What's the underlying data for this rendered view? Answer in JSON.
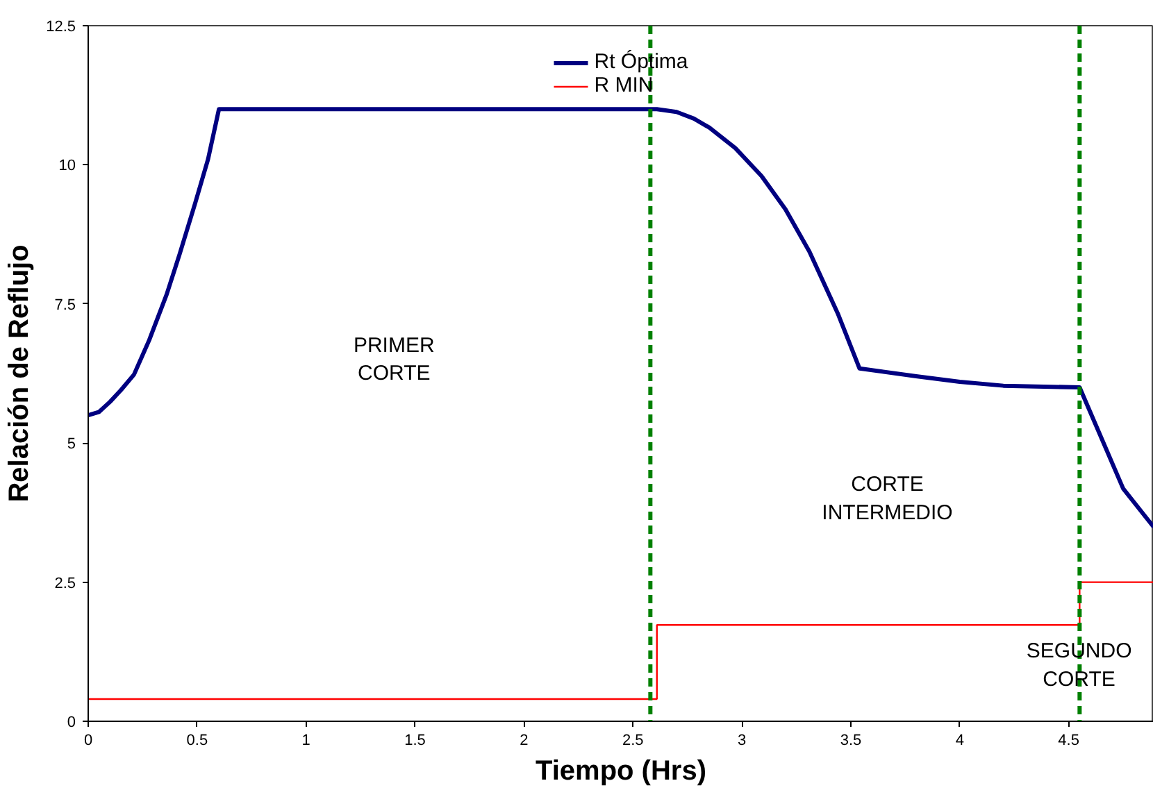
{
  "chart_data": {
    "type": "line",
    "xlabel": "Tiempo (Hrs)",
    "ylabel": "Relación de Reflujo",
    "xlim": [
      0,
      4.89
    ],
    "ylim": [
      0,
      12.5
    ],
    "xticks": [
      0,
      0.5,
      1,
      1.5,
      2,
      2.5,
      3,
      3.5,
      4,
      4.5
    ],
    "yticks": [
      0,
      2.5,
      5,
      7.5,
      10,
      12.5
    ],
    "grid": false,
    "legend": "top",
    "series": [
      {
        "name": "Rt Óptima",
        "color": "#000080",
        "x": [
          0,
          0.05,
          0.1,
          0.15,
          0.21,
          0.28,
          0.36,
          0.42,
          0.49,
          0.55,
          0.6,
          1.0,
          2.0,
          2.61,
          2.7,
          2.78,
          2.85,
          2.97,
          3.09,
          3.2,
          3.31,
          3.44,
          3.54,
          3.8,
          4.0,
          4.2,
          4.55,
          4.75,
          4.89
        ],
        "values": [
          5.5,
          5.56,
          5.74,
          5.95,
          6.23,
          6.85,
          7.67,
          8.4,
          9.3,
          10.1,
          11.0,
          11.0,
          11.0,
          11.0,
          10.95,
          10.83,
          10.67,
          10.3,
          9.8,
          9.2,
          8.44,
          7.33,
          6.34,
          6.2,
          6.1,
          6.03,
          6.0,
          4.18,
          3.49
        ]
      },
      {
        "name": "R MIN",
        "color": "#ff0000",
        "type": "step",
        "x": [
          0,
          2.61,
          4.55,
          4.89
        ],
        "values": [
          0.4,
          1.73,
          2.5,
          2.5
        ]
      }
    ],
    "ref_lines": [
      {
        "axis": "x",
        "value": 2.58,
        "color": "#008000",
        "line_style": "dashed"
      },
      {
        "axis": "x",
        "value": 4.55,
        "color": "#008000",
        "line_style": "dashed"
      }
    ],
    "annotations": [
      "PRIMER\nCORTE",
      "CORTE\nINTERMEDIO",
      "SEGUNDO\nCORTE"
    ]
  }
}
